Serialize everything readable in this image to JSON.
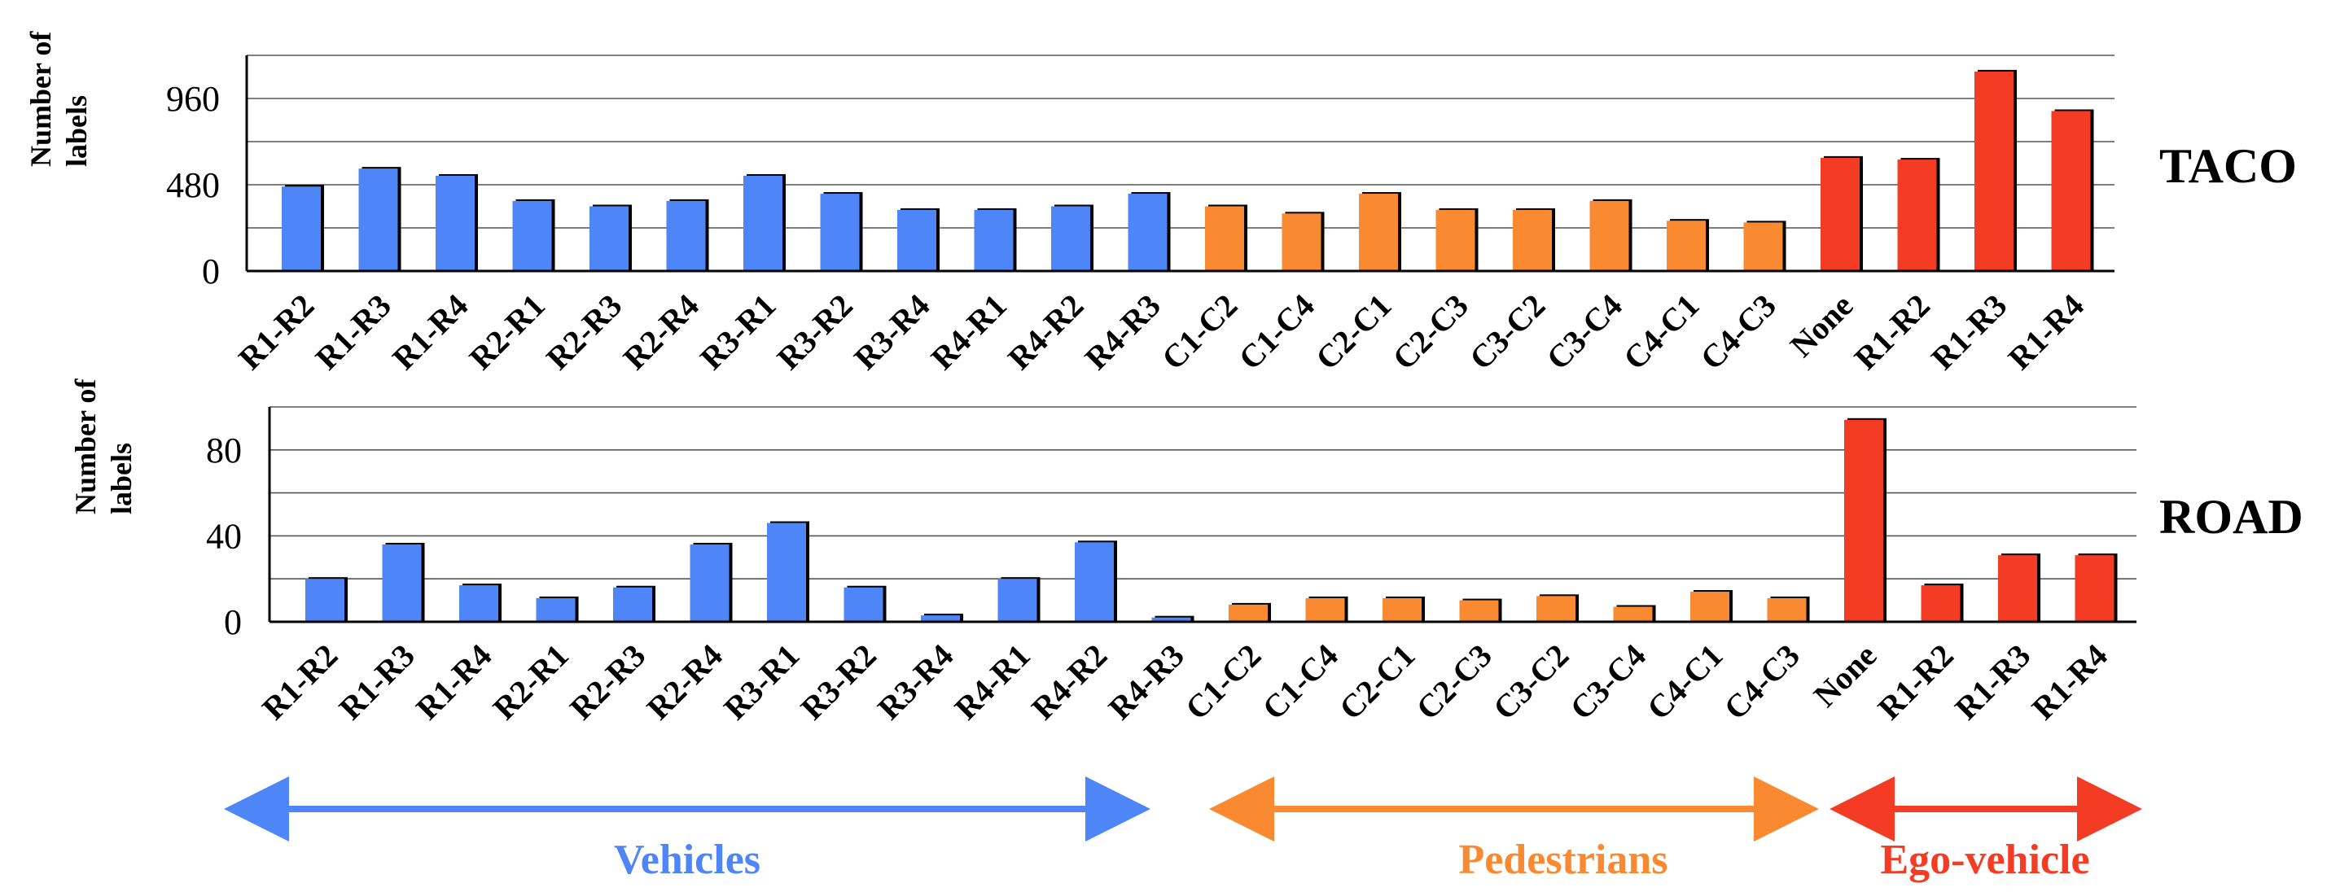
{
  "colors": {
    "Vehicles": "#4f86f7",
    "Pedestrians": "#f98a32",
    "Ego-vehicle": "#f43b24",
    "bar_shadow": "#000000"
  },
  "chart_data": [
    {
      "type": "bar",
      "title": "TACO",
      "ylabel": "Number of labels",
      "categories": [
        "R1-R2",
        "R1-R3",
        "R1-R4",
        "R2-R1",
        "R2-R3",
        "R2-R4",
        "R3-R1",
        "R3-R2",
        "R3-R4",
        "R4-R1",
        "R4-R2",
        "R4-R3",
        "C1-C2",
        "C1-C4",
        "C2-C1",
        "C2-C3",
        "C3-C2",
        "C3-C4",
        "C4-C1",
        "C4-C3",
        "None",
        "R1-R2",
        "R1-R3",
        "R1-R4"
      ],
      "groups": [
        "Vehicles",
        "Vehicles",
        "Vehicles",
        "Vehicles",
        "Vehicles",
        "Vehicles",
        "Vehicles",
        "Vehicles",
        "Vehicles",
        "Vehicles",
        "Vehicles",
        "Vehicles",
        "Pedestrians",
        "Pedestrians",
        "Pedestrians",
        "Pedestrians",
        "Pedestrians",
        "Pedestrians",
        "Pedestrians",
        "Pedestrians",
        "Ego-vehicle",
        "Ego-vehicle",
        "Ego-vehicle",
        "Ego-vehicle"
      ],
      "values": [
        470,
        570,
        530,
        390,
        360,
        390,
        530,
        430,
        340,
        340,
        360,
        430,
        360,
        320,
        430,
        340,
        340,
        390,
        280,
        270,
        630,
        620,
        1110,
        890
      ],
      "yticks": [
        0,
        480,
        960
      ],
      "ylim": [
        0,
        1200
      ],
      "grid": true
    },
    {
      "type": "bar",
      "title": "ROAD",
      "ylabel": "Number of labels",
      "categories": [
        "R1-R2",
        "R1-R3",
        "R1-R4",
        "R2-R1",
        "R2-R3",
        "R2-R4",
        "R3-R1",
        "R3-R2",
        "R3-R4",
        "R4-R1",
        "R4-R2",
        "R4-R3",
        "C1-C2",
        "C1-C4",
        "C2-C1",
        "C2-C3",
        "C3-C2",
        "C3-C4",
        "C4-C1",
        "C4-C3",
        "None",
        "R1-R2",
        "R1-R3",
        "R1-R4"
      ],
      "groups": [
        "Vehicles",
        "Vehicles",
        "Vehicles",
        "Vehicles",
        "Vehicles",
        "Vehicles",
        "Vehicles",
        "Vehicles",
        "Vehicles",
        "Vehicles",
        "Vehicles",
        "Vehicles",
        "Pedestrians",
        "Pedestrians",
        "Pedestrians",
        "Pedestrians",
        "Pedestrians",
        "Pedestrians",
        "Pedestrians",
        "Pedestrians",
        "Ego-vehicle",
        "Ego-vehicle",
        "Ego-vehicle",
        "Ego-vehicle"
      ],
      "values": [
        20,
        36,
        17,
        11,
        16,
        36,
        46,
        16,
        3,
        20,
        37,
        2,
        8,
        11,
        11,
        10,
        12,
        7,
        14,
        11,
        94,
        17,
        31,
        31
      ],
      "yticks": [
        0,
        40,
        80
      ],
      "ylim": [
        0,
        100
      ],
      "grid": true
    }
  ],
  "group_labels": [
    "Vehicles",
    "Pedestrians",
    "Ego-vehicle"
  ]
}
